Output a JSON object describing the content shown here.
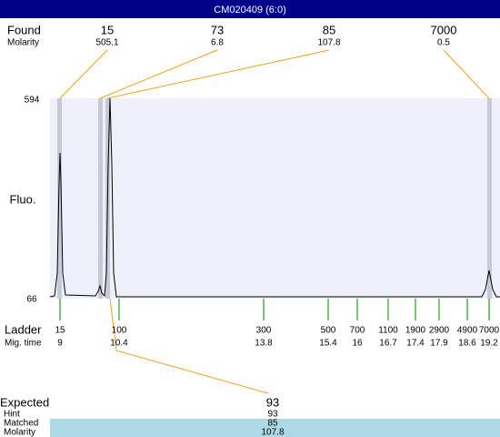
{
  "title": "CM020409 (6:0)",
  "found": {
    "label": "Found",
    "molarity_label": "Molarity",
    "peaks": [
      {
        "size": "15",
        "molarity": "505.1"
      },
      {
        "size": "73",
        "molarity": "6.8"
      },
      {
        "size": "85",
        "molarity": "107.8"
      },
      {
        "size": "7000",
        "molarity": "0.5"
      }
    ]
  },
  "y_axis": {
    "label": "Fluo.",
    "max": "594",
    "min": "66"
  },
  "ladder": {
    "label": "Ladder",
    "time_label": "Mig. time",
    "items": [
      {
        "size": "15",
        "time": "9"
      },
      {
        "size": "100",
        "time": "10.4"
      },
      {
        "size": "300",
        "time": "13.8"
      },
      {
        "size": "500",
        "time": "15.4"
      },
      {
        "size": "700",
        "time": "16"
      },
      {
        "size": "1100",
        "time": "16.7"
      },
      {
        "size": "1900",
        "time": "17.4"
      },
      {
        "size": "2900",
        "time": "17.9"
      },
      {
        "size": "4900",
        "time": "18.6"
      },
      {
        "size": "7000",
        "time": "19.2"
      }
    ]
  },
  "expected": {
    "label": "Expected",
    "value": "93",
    "hint_label": "Hint",
    "hint": "93",
    "matched_label": "Matched",
    "matched": "85",
    "molarity_label": "Molarity",
    "molarity": "107.8"
  }
}
